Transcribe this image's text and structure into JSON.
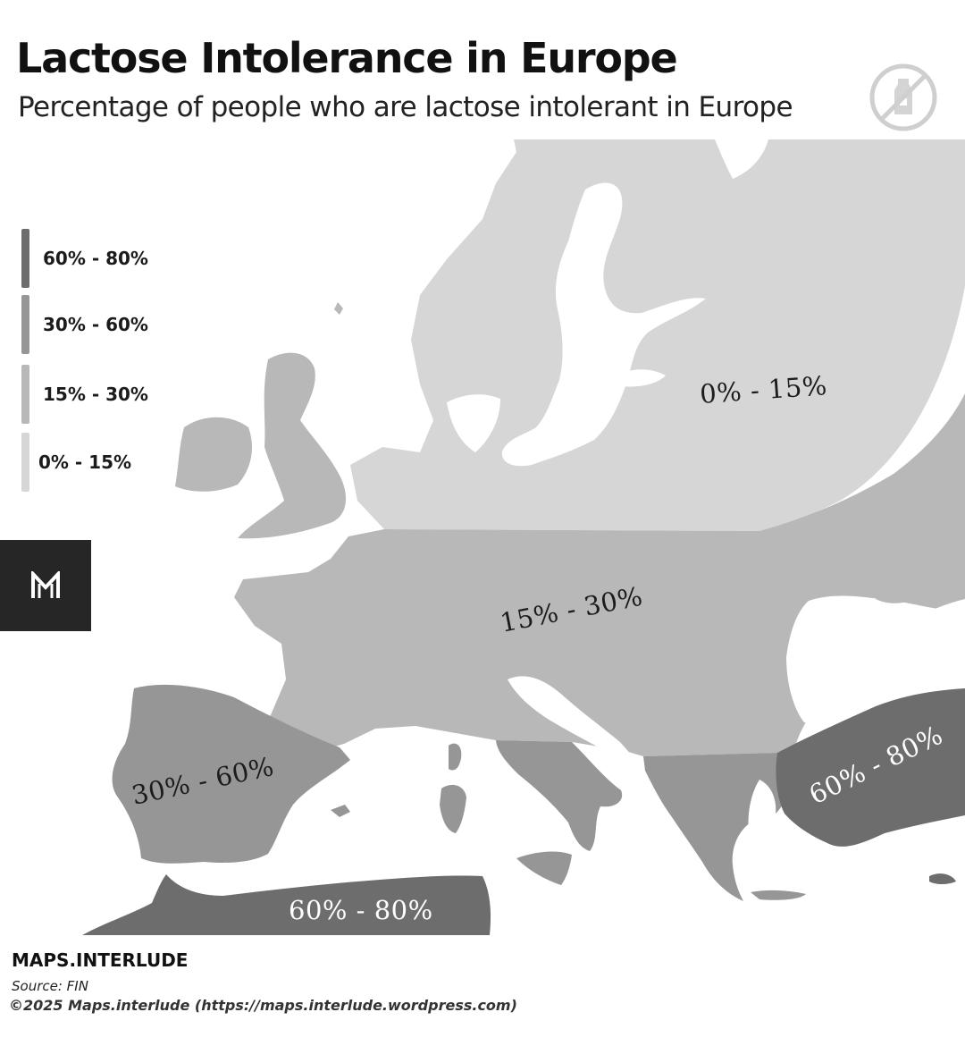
{
  "header": {
    "title": "Lactose Intolerance in Europe",
    "subtitle": "Percentage of people who are lactose intolerant in Europe",
    "icon": "no-milk-icon"
  },
  "legend": {
    "items": [
      {
        "label": "60% - 80%",
        "color": "#6d6d6d"
      },
      {
        "label": "30% - 60%",
        "color": "#969696"
      },
      {
        "label": "15% - 30%",
        "color": "#b8b8b8"
      },
      {
        "label": "0% - 15%",
        "color": "#d6d6d6"
      }
    ]
  },
  "map": {
    "background": "#ffffff",
    "regions": [
      {
        "name": "Northern and Eastern Europe",
        "label": "0% - 15%",
        "color": "#d6d6d6"
      },
      {
        "name": "Central Europe and France",
        "label": "15% - 30%",
        "color": "#b8b8b8"
      },
      {
        "name": "Iberian Peninsula",
        "label": "30% - 60%",
        "color": "#969696"
      },
      {
        "name": "Turkey",
        "label": "60% - 80%",
        "color": "#6d6d6d"
      },
      {
        "name": "North Africa",
        "label": "60% - 80%",
        "color": "#6d6d6d"
      }
    ]
  },
  "branding": {
    "badge_icon": "m-logo-icon",
    "name": "MAPS.INTERLUDE",
    "source": "Source: FIN",
    "copyright": "©2025 Maps.interlude (https://maps.interlude.wordpress.com)"
  }
}
